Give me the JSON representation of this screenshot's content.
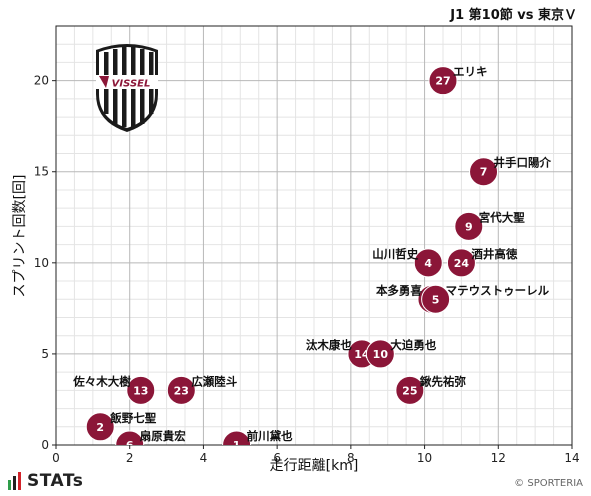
{
  "header": {
    "title": "J1 第10節 vs 東京Ｖ"
  },
  "footer": {
    "brand": "STATs",
    "credit": "© SPORTERIA"
  },
  "colors": {
    "marker": "#8b1638",
    "marker_edge": "#ffffff",
    "grid_major": "#b8b8b8",
    "grid_minor": "#e4e4e4"
  },
  "logo": {
    "text": "VISSEL",
    "icon": "vissel-crest-icon"
  },
  "chart_data": {
    "type": "scatter",
    "title": "J1 第10節 vs 東京Ｖ",
    "xlabel": "走行距離[km]",
    "ylabel": "スプリント回数[回]",
    "xlim": [
      0,
      14
    ],
    "ylim": [
      0,
      23
    ],
    "xticks": [
      0,
      2,
      4,
      6,
      8,
      10,
      12,
      14
    ],
    "yticks": [
      0,
      5,
      10,
      15,
      20
    ],
    "grid": true,
    "points": [
      {
        "number": "27",
        "name": "エリキ",
        "x": 10.5,
        "y": 20,
        "label_side": "right"
      },
      {
        "number": "7",
        "name": "井手口陽介",
        "x": 11.6,
        "y": 15,
        "label_side": "right"
      },
      {
        "number": "9",
        "name": "宮代大聖",
        "x": 11.2,
        "y": 12,
        "label_side": "right"
      },
      {
        "number": "4",
        "name": "山川哲史",
        "x": 10.1,
        "y": 10,
        "label_side": "left"
      },
      {
        "number": "24",
        "name": "酒井高徳",
        "x": 11.0,
        "y": 10,
        "label_side": "right"
      },
      {
        "number": "15",
        "name": "本多勇喜",
        "x": 10.2,
        "y": 8,
        "label_side": "left"
      },
      {
        "number": "5",
        "name": "マテウストゥーレル",
        "x": 10.3,
        "y": 8,
        "label_side": "right"
      },
      {
        "number": "14",
        "name": "汰木康也",
        "x": 8.3,
        "y": 5,
        "label_side": "left"
      },
      {
        "number": "10",
        "name": "大迫勇也",
        "x": 8.8,
        "y": 5,
        "label_side": "right"
      },
      {
        "number": "25",
        "name": "鍬先祐弥",
        "x": 9.6,
        "y": 3,
        "label_side": "right"
      },
      {
        "number": "13",
        "name": "佐々木大樹",
        "x": 2.3,
        "y": 3,
        "label_side": "left"
      },
      {
        "number": "23",
        "name": "広瀬陸斗",
        "x": 3.4,
        "y": 3,
        "label_side": "right"
      },
      {
        "number": "2",
        "name": "飯野七聖",
        "x": 1.2,
        "y": 1,
        "label_side": "right"
      },
      {
        "number": "6",
        "name": "扇原貴宏",
        "x": 2.0,
        "y": 0,
        "label_side": "right"
      },
      {
        "number": "1",
        "name": "前川黛也",
        "x": 4.9,
        "y": 0,
        "label_side": "right"
      }
    ]
  }
}
